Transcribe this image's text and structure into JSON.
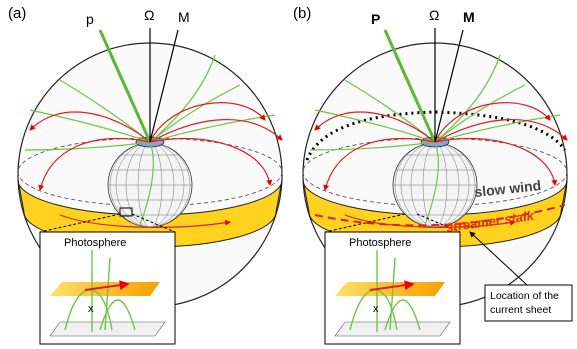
{
  "panels": [
    {
      "label": "(a)",
      "axes": {
        "p": "p",
        "omega": "Ω",
        "m": "M"
      },
      "inset": {
        "title": "Photosphere",
        "marker": "x"
      }
    },
    {
      "label": "(b)",
      "axes": {
        "p": "P",
        "omega": "Ω",
        "m": "M"
      },
      "annotations": {
        "slow_wind": "slow wind",
        "streamer_stalk": "streamer stalk"
      },
      "inset": {
        "title": "Photosphere",
        "marker": "x"
      },
      "callout": [
        "Location of the",
        "current sheet"
      ]
    }
  ]
}
